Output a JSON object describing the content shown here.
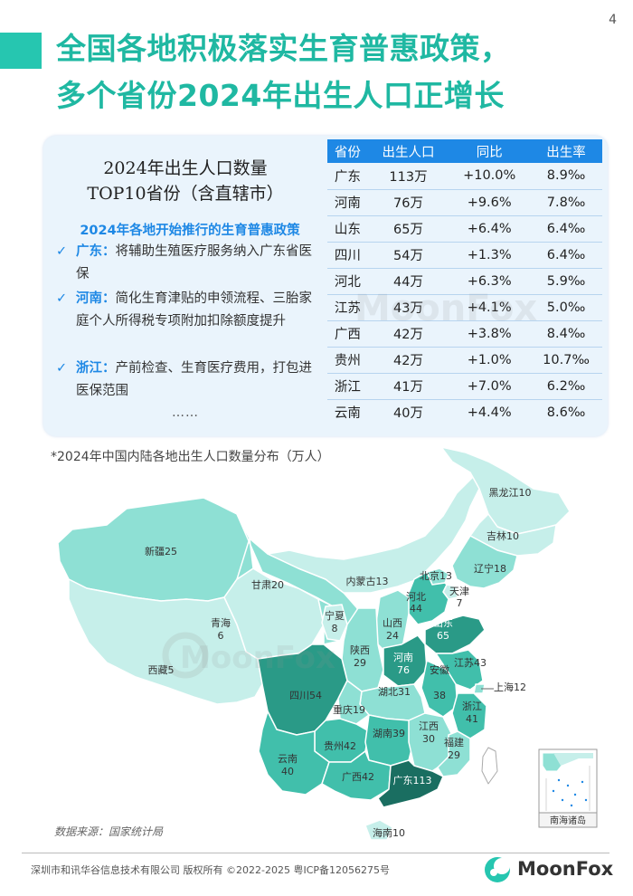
{
  "page_number": "4",
  "title_line1": "全国各地积极落实生育普惠政策，",
  "title_line2": "多个省份2024年出生人口正增长",
  "panel": {
    "heading_line1": "2024年出生人口数量",
    "heading_line2": "TOP10省份（含直辖市）",
    "policy_title": "2024年各地开始推行的生育普惠政策",
    "check_symbol": "✓",
    "policies": [
      {
        "province": "广东：",
        "text": "将辅助生殖医疗服务纳入广东省医保"
      },
      {
        "province": "河南：",
        "text": "简化生育津贴的申领流程、三胎家庭个人所得税专项附加扣除额度提升"
      },
      {
        "province": "浙江：",
        "text": "产前检查、生育医疗费用，打包进医保范围"
      }
    ],
    "ellipsis": "……"
  },
  "table": {
    "headers": [
      "省份",
      "出生人口",
      "同比",
      "出生率"
    ],
    "rows": [
      [
        "广东",
        "113万",
        "+10.0%",
        "8.9‰"
      ],
      [
        "河南",
        "76万",
        "+9.6%",
        "7.8‰"
      ],
      [
        "山东",
        "65万",
        "+6.4%",
        "6.4‰"
      ],
      [
        "四川",
        "54万",
        "+1.3%",
        "6.4‰"
      ],
      [
        "河北",
        "44万",
        "+6.3%",
        "5.9‰"
      ],
      [
        "江苏",
        "43万",
        "+4.1%",
        "5.0‰"
      ],
      [
        "广西",
        "42万",
        "+3.8%",
        "8.4‰"
      ],
      [
        "贵州",
        "42万",
        "+1.0%",
        "10.7‰"
      ],
      [
        "浙江",
        "41万",
        "+7.0%",
        "6.2‰"
      ],
      [
        "云南",
        "40万",
        "+4.4%",
        "8.6‰"
      ]
    ]
  },
  "watermark": "MoonFox",
  "map_caption": "*2024年中国内陆各地出生人口数量分布（万人）",
  "map_labels": {
    "heilongjiang": "黑龙江10",
    "jilin": "吉林10",
    "liaoning": "辽宁18",
    "xinjiang": "新疆25",
    "gansu": "甘肃20",
    "neimenggu": "内蒙古13",
    "beijing": "北京13",
    "tianjin_name": "天津",
    "tianjin_value": "7",
    "hebei_name": "河北",
    "hebei_value": "44",
    "qinghai_name": "青海",
    "qinghai_value": "6",
    "ningxia_name": "宁夏",
    "ningxia_value": "8",
    "shanxi_name": "山西",
    "shanxi_value": "24",
    "shandong_name": "山东",
    "shandong_value": "65",
    "shaanxi_name": "陕西",
    "shaanxi_value": "29",
    "henan_name": "河南",
    "henan_value": "76",
    "jiangsu": "江苏43",
    "xizang": "西藏5",
    "anhui_name": "安徽",
    "anhui_value": "38",
    "shanghai": "上海12",
    "sichuan": "四川54",
    "hubei": "湖北31",
    "chongqing": "重庆19",
    "zhejiang_name": "浙江",
    "zhejiang_value": "41",
    "hunan": "湖南39",
    "jiangxi_name": "江西",
    "jiangxi_value": "30",
    "guizhou": "贵州42",
    "fujian_name": "福建",
    "fujian_value": "29",
    "yunnan_name": "云南",
    "yunnan_value": "40",
    "guangxi": "广西42",
    "guangdong": "广东113",
    "hainan": "海南10",
    "south_sea": "南海诸岛"
  },
  "source": "数据来源：国家统计局",
  "copyright": "深圳市和讯华谷信息技术有限公司 版权所有 ©2022-2025   粤ICP备12056275号",
  "logo_text": "MoonFox",
  "colors": {
    "accent": "#26c6b0",
    "blue": "#1e88e5",
    "level_1": "#c6efea",
    "level_2": "#8ee0d4",
    "level_3": "#41bfab",
    "level_4": "#2a9a87",
    "level_5": "#1a6e61"
  }
}
